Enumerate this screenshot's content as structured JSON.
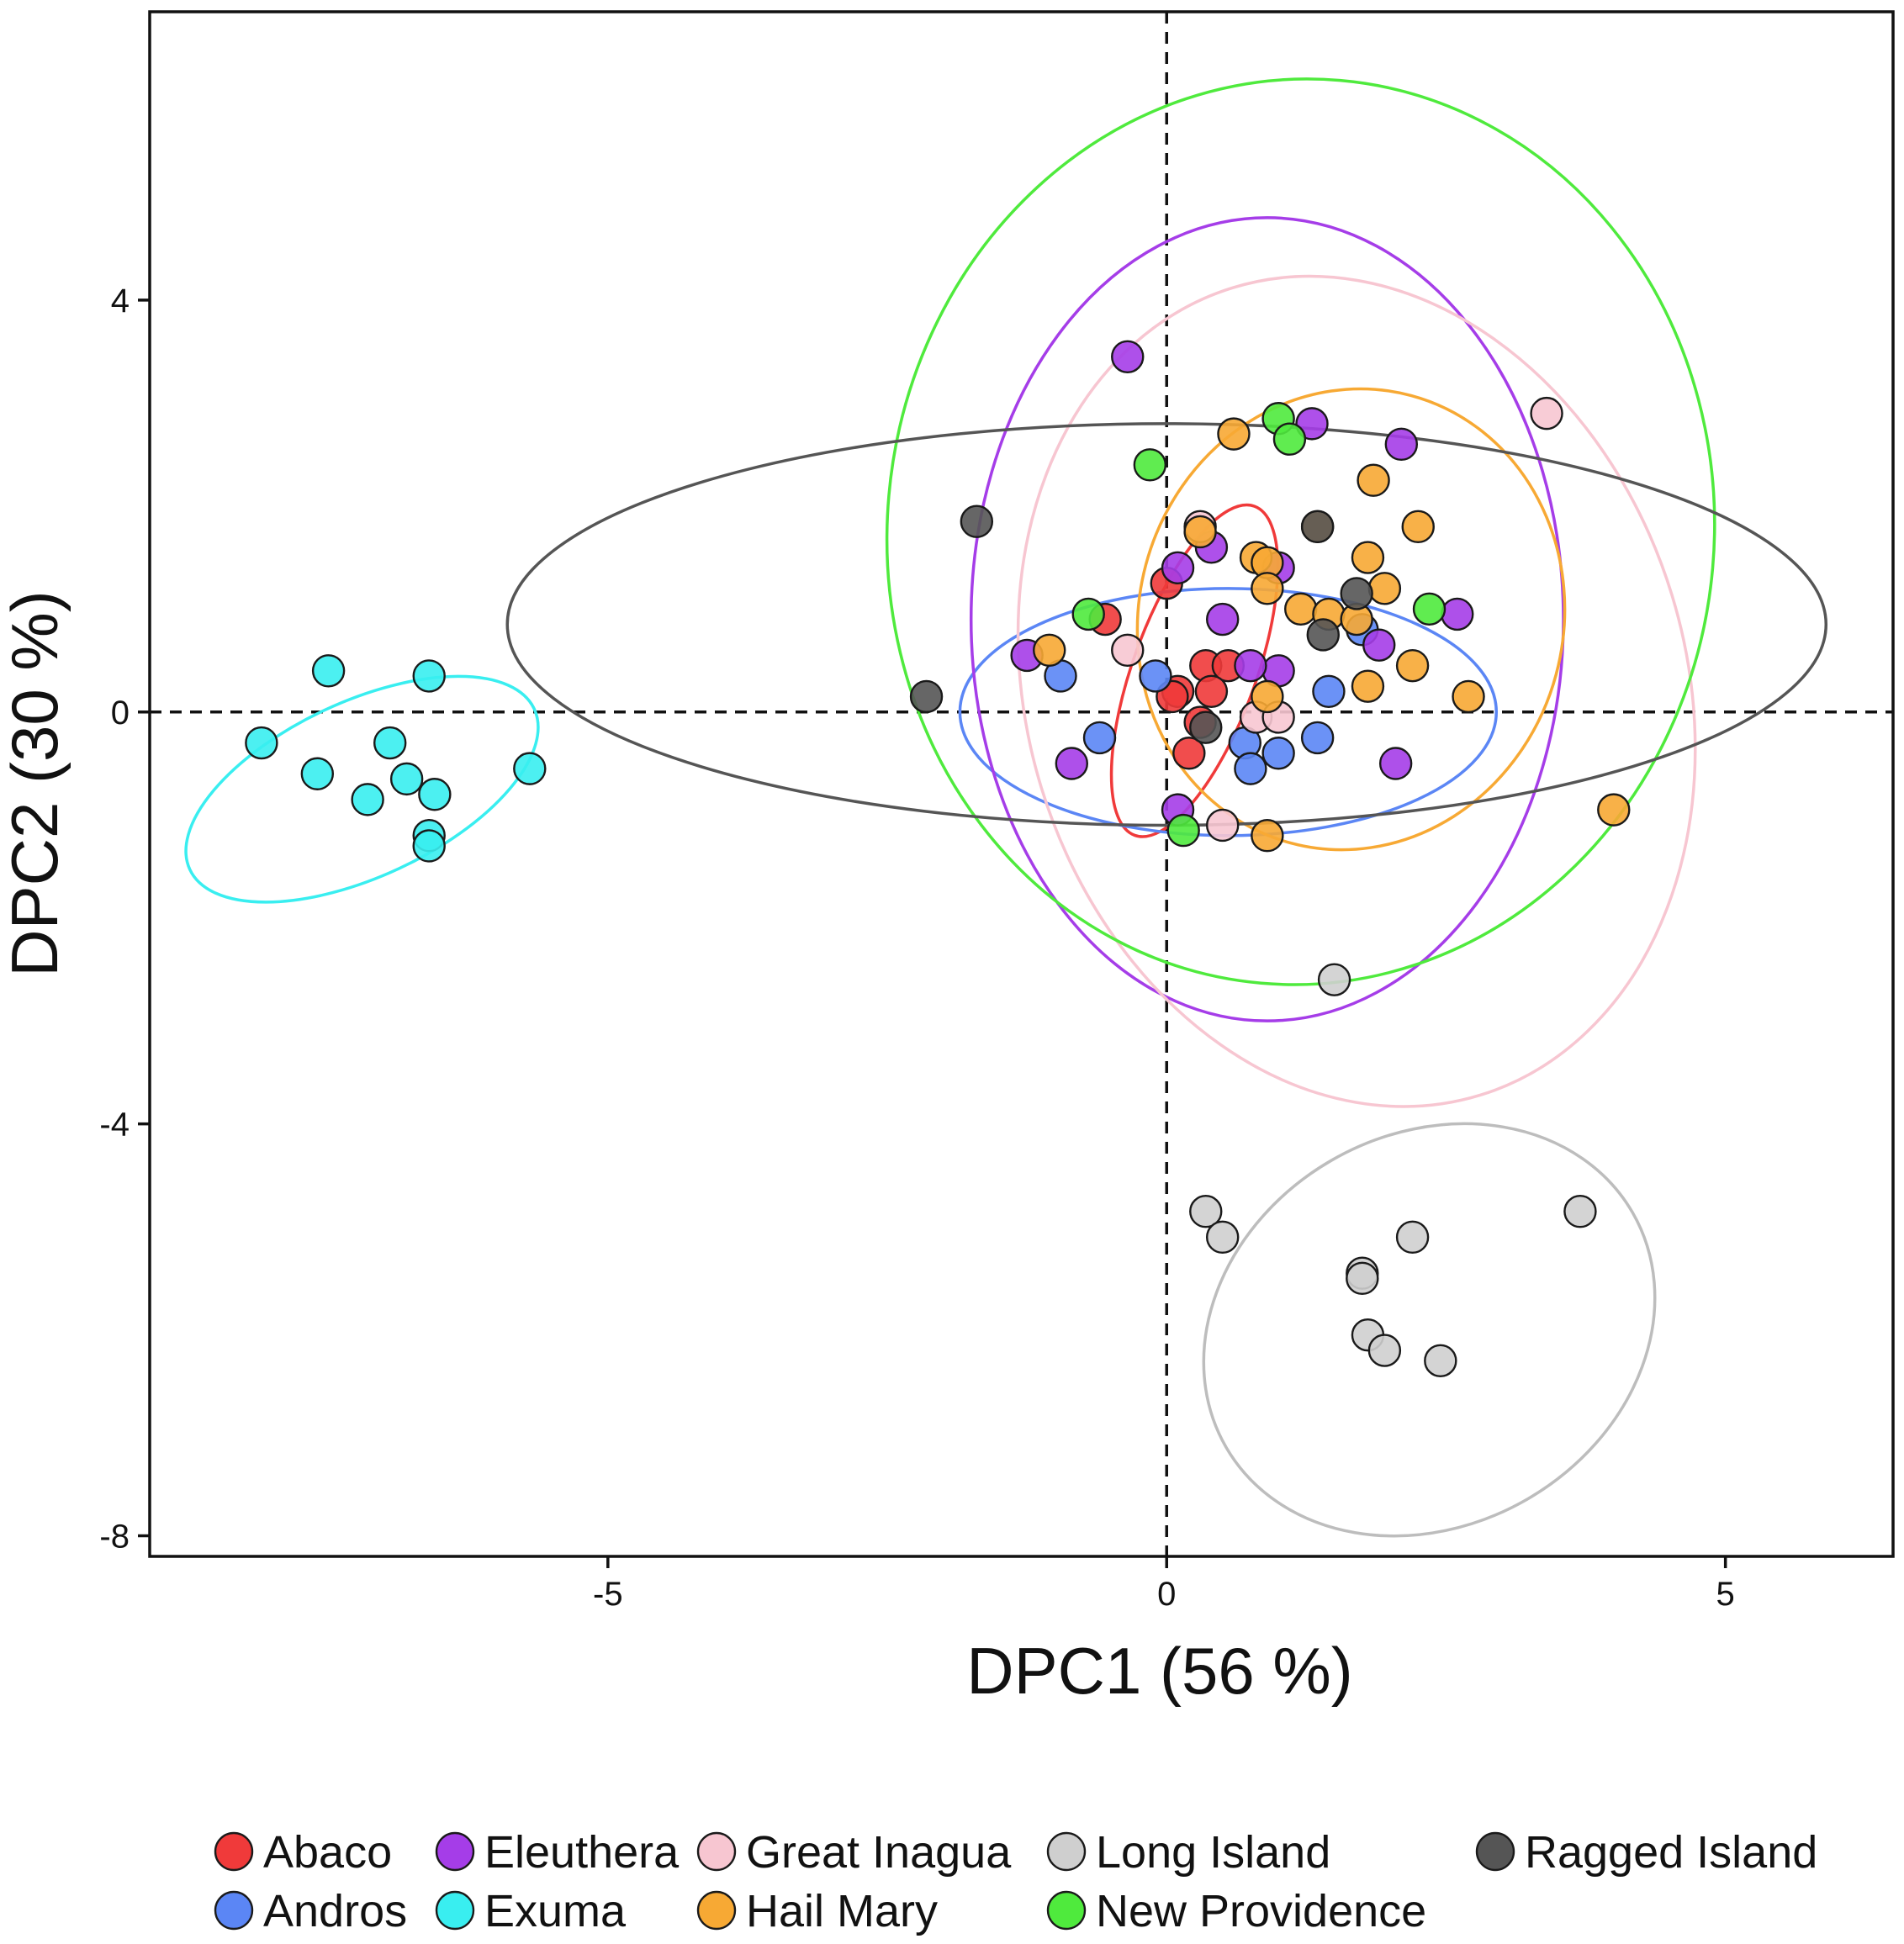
{
  "chart_data": {
    "type": "scatter",
    "title": "",
    "xlabel": "DPC1 (56 %)",
    "ylabel": "DPC2 (30 %)",
    "xlim": [
      -9.1,
      6.5
    ],
    "ylim": [
      -8.2,
      6.8
    ],
    "xticks": [
      -5,
      0,
      5
    ],
    "yticks": [
      -8,
      -4,
      0,
      4
    ],
    "xtick_labels": [
      "-5",
      "0",
      "5"
    ],
    "ytick_labels": [
      "-8",
      "-4",
      "0",
      "4"
    ],
    "grid": false,
    "reference_lines": {
      "x": 0,
      "y": 0,
      "style": "dashed"
    },
    "legend_position": "bottom",
    "series": [
      {
        "name": "Abaco",
        "color": "#f03a3a",
        "ellipse": {
          "cx": 0.25,
          "cy": 0.4,
          "rx": 0.55,
          "ry": 1.7,
          "angle": -20
        },
        "points": [
          [
            0.0,
            1.25
          ],
          [
            0.35,
            0.45
          ],
          [
            0.55,
            0.45
          ],
          [
            0.1,
            0.2
          ],
          [
            0.4,
            0.2
          ],
          [
            0.3,
            -0.1
          ],
          [
            0.2,
            -0.4
          ],
          [
            -0.55,
            0.9
          ],
          [
            0.05,
            0.15
          ]
        ]
      },
      {
        "name": "Andros",
        "color": "#5b86f5",
        "ellipse": {
          "cx": 0.55,
          "cy": 0.0,
          "rx": 2.4,
          "ry": 1.2,
          "angle": 0
        },
        "points": [
          [
            -0.95,
            0.35
          ],
          [
            -0.6,
            -0.25
          ],
          [
            -0.1,
            0.35
          ],
          [
            0.7,
            -0.3
          ],
          [
            0.75,
            -0.55
          ],
          [
            1.0,
            -0.4
          ],
          [
            1.35,
            -0.25
          ],
          [
            1.45,
            0.2
          ],
          [
            1.75,
            0.8
          ]
        ]
      },
      {
        "name": "Eleuthera",
        "color": "#a53de8",
        "ellipse": {
          "cx": 0.9,
          "cy": 0.9,
          "rx": 2.65,
          "ry": 3.9,
          "angle": 0
        },
        "points": [
          [
            -0.35,
            3.45
          ],
          [
            1.3,
            2.8
          ],
          [
            2.1,
            2.6
          ],
          [
            0.1,
            1.4
          ],
          [
            0.4,
            1.6
          ],
          [
            1.0,
            1.4
          ],
          [
            0.5,
            0.9
          ],
          [
            1.0,
            0.4
          ],
          [
            0.75,
            0.45
          ],
          [
            1.9,
            0.65
          ],
          [
            2.6,
            0.95
          ],
          [
            -1.25,
            0.55
          ],
          [
            -0.85,
            -0.5
          ],
          [
            2.05,
            -0.5
          ],
          [
            0.1,
            -0.95
          ]
        ]
      },
      {
        "name": "Exuma",
        "color": "#39eef0",
        "ellipse": {
          "cx": -7.2,
          "cy": -0.75,
          "rx": 1.7,
          "ry": 0.85,
          "angle": 25
        },
        "points": [
          [
            -7.5,
            0.4
          ],
          [
            -6.6,
            0.35
          ],
          [
            -8.1,
            -0.3
          ],
          [
            -7.6,
            -0.6
          ],
          [
            -6.95,
            -0.3
          ],
          [
            -6.8,
            -0.65
          ],
          [
            -7.15,
            -0.85
          ],
          [
            -6.55,
            -0.8
          ],
          [
            -6.6,
            -1.2
          ],
          [
            -6.6,
            -1.3
          ],
          [
            -5.7,
            -0.55
          ]
        ]
      },
      {
        "name": "Great Inagua",
        "color": "#f7c6d1",
        "ellipse": {
          "cx": 1.7,
          "cy": 0.2,
          "rx": 2.95,
          "ry": 4.1,
          "angle": 17
        },
        "points": [
          [
            3.4,
            2.9
          ],
          [
            0.3,
            1.8
          ],
          [
            -0.35,
            0.6
          ],
          [
            0.8,
            -0.05
          ],
          [
            1.0,
            -0.05
          ],
          [
            0.5,
            -1.1
          ]
        ]
      },
      {
        "name": "Hail Mary",
        "color": "#f7a934",
        "ellipse": {
          "cx": 1.65,
          "cy": 0.9,
          "rx": 1.9,
          "ry": 2.25,
          "angle": -15
        },
        "points": [
          [
            0.6,
            2.7
          ],
          [
            1.85,
            2.25
          ],
          [
            0.3,
            1.75
          ],
          [
            1.35,
            1.8
          ],
          [
            2.25,
            1.8
          ],
          [
            0.8,
            1.5
          ],
          [
            0.9,
            1.45
          ],
          [
            1.8,
            1.5
          ],
          [
            0.9,
            1.2
          ],
          [
            1.95,
            1.2
          ],
          [
            1.2,
            1.0
          ],
          [
            1.45,
            0.95
          ],
          [
            1.7,
            0.9
          ],
          [
            2.2,
            0.45
          ],
          [
            -1.05,
            0.6
          ],
          [
            1.8,
            0.25
          ],
          [
            2.7,
            0.15
          ],
          [
            0.9,
            0.15
          ],
          [
            0.9,
            -1.2
          ],
          [
            4.0,
            -0.95
          ]
        ]
      },
      {
        "name": "Long Island",
        "color": "#cfcfcf",
        "ellipse": {
          "cx": 2.35,
          "cy": -6.0,
          "rx": 2.1,
          "ry": 1.9,
          "angle": 30
        },
        "points": [
          [
            1.5,
            -2.6
          ],
          [
            0.35,
            -4.85
          ],
          [
            0.5,
            -5.1
          ],
          [
            2.2,
            -5.1
          ],
          [
            3.7,
            -4.85
          ],
          [
            1.75,
            -5.45
          ],
          [
            1.75,
            -5.5
          ],
          [
            1.8,
            -6.05
          ],
          [
            1.95,
            -6.2
          ],
          [
            2.45,
            -6.3
          ]
        ]
      },
      {
        "name": "New Providence",
        "color": "#4fea3d",
        "ellipse": {
          "cx": 1.2,
          "cy": 1.75,
          "rx": 3.7,
          "ry": 4.4,
          "angle": -5
        },
        "points": [
          [
            1.0,
            2.85
          ],
          [
            1.1,
            2.65
          ],
          [
            -0.15,
            2.4
          ],
          [
            -0.7,
            0.95
          ],
          [
            2.35,
            1.0
          ],
          [
            0.15,
            -1.15
          ]
        ]
      },
      {
        "name": "Ragged Island",
        "color": "#555555",
        "ellipse": {
          "cx": 0.0,
          "cy": 0.85,
          "rx": 5.9,
          "ry": 1.95,
          "angle": 0
        },
        "points": [
          [
            -1.7,
            1.85
          ],
          [
            1.35,
            1.8
          ],
          [
            1.7,
            1.15
          ],
          [
            1.4,
            0.75
          ],
          [
            -2.15,
            0.15
          ],
          [
            0.35,
            -0.15
          ]
        ]
      }
    ]
  }
}
